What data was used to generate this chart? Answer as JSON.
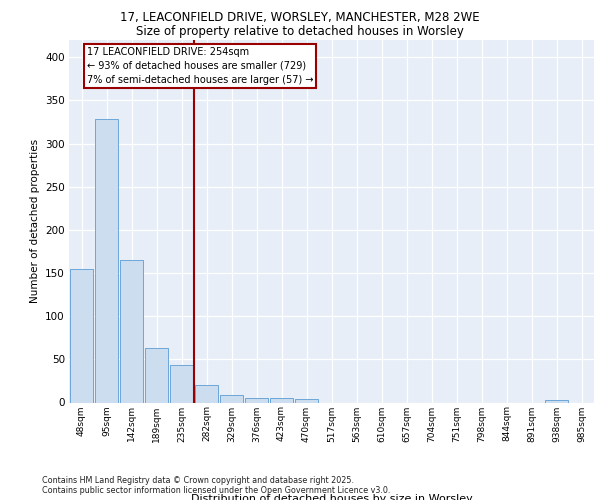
{
  "title_line1": "17, LEACONFIELD DRIVE, WORSLEY, MANCHESTER, M28 2WE",
  "title_line2": "Size of property relative to detached houses in Worsley",
  "xlabel": "Distribution of detached houses by size in Worsley",
  "ylabel": "Number of detached properties",
  "bar_labels": [
    "48sqm",
    "95sqm",
    "142sqm",
    "189sqm",
    "235sqm",
    "282sqm",
    "329sqm",
    "376sqm",
    "423sqm",
    "470sqm",
    "517sqm",
    "563sqm",
    "610sqm",
    "657sqm",
    "704sqm",
    "751sqm",
    "798sqm",
    "844sqm",
    "891sqm",
    "938sqm",
    "985sqm"
  ],
  "values": [
    155,
    328,
    165,
    63,
    43,
    20,
    9,
    5,
    5,
    4,
    0,
    0,
    0,
    0,
    0,
    0,
    0,
    0,
    0,
    3,
    0
  ],
  "bar_color": "#ccddf0",
  "bar_edgecolor": "#5b9bd5",
  "vline_color": "#990000",
  "vline_x": 4.5,
  "annotation_text": "17 LEACONFIELD DRIVE: 254sqm\n← 93% of detached houses are smaller (729)\n7% of semi-detached houses are larger (57) →",
  "ylim": [
    0,
    420
  ],
  "yticks": [
    0,
    50,
    100,
    150,
    200,
    250,
    300,
    350,
    400
  ],
  "background_color": "#e8eef8",
  "grid_color": "#ffffff",
  "footer_line1": "Contains HM Land Registry data © Crown copyright and database right 2025.",
  "footer_line2": "Contains public sector information licensed under the Open Government Licence v3.0."
}
